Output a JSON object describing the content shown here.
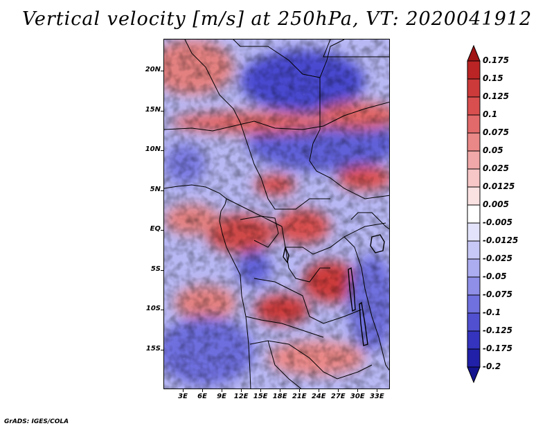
{
  "title": "Vertical velocity [m/s] at 250hPa, VT: 2020041912",
  "footer": "GrADS: IGES/COLA",
  "map": {
    "projection": "latlon",
    "lat_range": [
      -20,
      24
    ],
    "lon_range": [
      0,
      35
    ],
    "lat_labels": [
      "20N",
      "15N",
      "10N",
      "5N",
      "EQ",
      "5S",
      "10S",
      "15S"
    ],
    "lat_values": [
      20,
      15,
      10,
      5,
      0,
      -5,
      -10,
      -15
    ],
    "lon_labels": [
      "3E",
      "6E",
      "9E",
      "12E",
      "15E",
      "18E",
      "21E",
      "24E",
      "27E",
      "30E",
      "33E"
    ],
    "lon_values": [
      3,
      6,
      9,
      12,
      15,
      18,
      21,
      24,
      27,
      30,
      33
    ]
  },
  "colorbar": {
    "labels": [
      "0.175",
      "0.15",
      "0.125",
      "0.1",
      "0.075",
      "0.05",
      "0.025",
      "0.0125",
      "0.005",
      "-0.005",
      "-0.0125",
      "-0.025",
      "-0.05",
      "-0.075",
      "-0.1",
      "-0.125",
      "-0.175",
      "-0.2"
    ],
    "colors": [
      "#a01414",
      "#bb2424",
      "#cc3a3a",
      "#d94f4f",
      "#e26a6a",
      "#ea8888",
      "#f1a8a8",
      "#f7c6c6",
      "#fbe2e2",
      "#ffffff",
      "#e3e3fb",
      "#c8c8f6",
      "#acacf0",
      "#8f8fe8",
      "#7070de",
      "#5050d0",
      "#3434be",
      "#2020a8",
      "#14148f"
    ]
  },
  "colors": {
    "positive": "#d94f4f",
    "negative": "#5050d0"
  }
}
